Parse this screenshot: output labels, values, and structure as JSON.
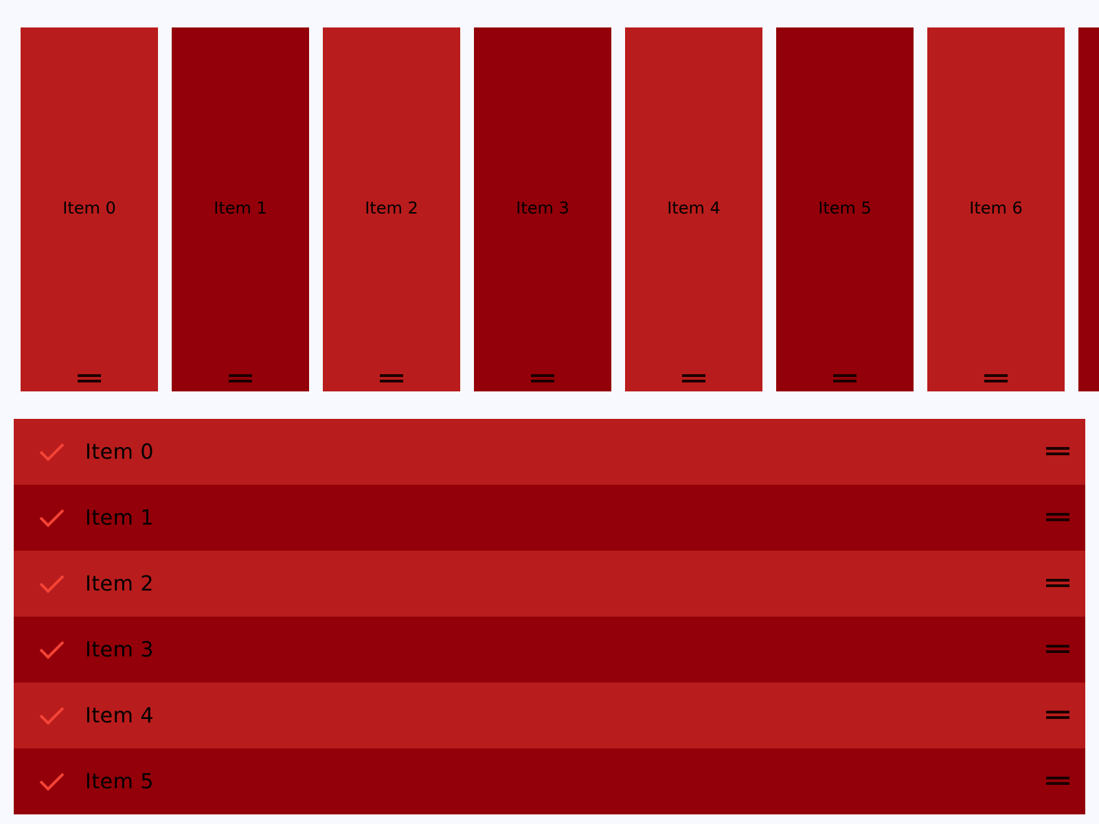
{
  "colors": {
    "light": "#b91c1c",
    "dark": "#930009",
    "check": "#f44336",
    "background": "#f7f9fe"
  },
  "horizontal_items": [
    {
      "label": "Item 0"
    },
    {
      "label": "Item 1"
    },
    {
      "label": "Item 2"
    },
    {
      "label": "Item 3"
    },
    {
      "label": "Item 4"
    },
    {
      "label": "Item 5"
    },
    {
      "label": "Item 6"
    },
    {
      "label": ""
    }
  ],
  "vertical_items": [
    {
      "label": "Item 0",
      "checked": true
    },
    {
      "label": "Item 1",
      "checked": true
    },
    {
      "label": "Item 2",
      "checked": true
    },
    {
      "label": "Item 3",
      "checked": true
    },
    {
      "label": "Item 4",
      "checked": true
    },
    {
      "label": "Item 5",
      "checked": true
    }
  ],
  "icons": {
    "drag": "drag-handle-icon",
    "check": "check-icon"
  }
}
